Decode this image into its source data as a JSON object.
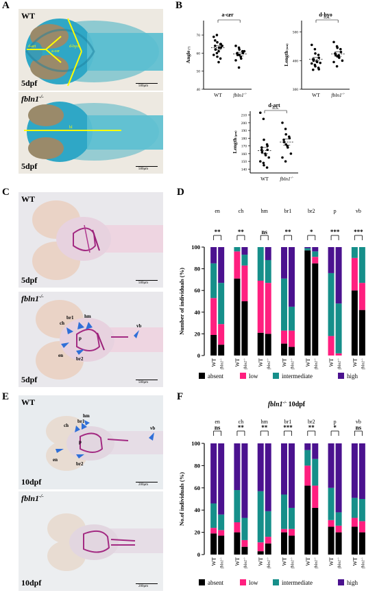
{
  "panel_labels": {
    "a": "A",
    "b": "B",
    "c": "C",
    "d": "D",
    "e": "E",
    "f": "F"
  },
  "panel_a": {
    "top": {
      "genotype": "WT",
      "stage": "5dpf",
      "scale": "500μm",
      "labels": {
        "d_art": "d-art",
        "a_cer": "a-cer",
        "d_hyo": "d-hyo"
      }
    },
    "bottom": {
      "genotype": "fbln1",
      "sup": "-/-",
      "stage": "5dpf",
      "scale": "500μm",
      "labels": {
        "bl": "bl"
      }
    }
  },
  "panel_b": {
    "charts": [
      {
        "title": "a-cer",
        "ylabel": "Angle",
        "yunit": "(°)",
        "yticks": [
          "40",
          "50",
          "60",
          "70"
        ],
        "ylim": [
          40,
          78
        ],
        "xlabels": [
          "WT",
          "fbln1"
        ],
        "xsup": "-/-",
        "sig": "*",
        "groups": [
          {
            "values": [
              69,
              70,
              66,
              65,
              63,
              64,
              62,
              61,
              63,
              64,
              59,
              60,
              58,
              57,
              65,
              67,
              62,
              55
            ],
            "mean": 63,
            "sem": 1.0
          },
          {
            "values": [
              64,
              63,
              62,
              61,
              60,
              60,
              59,
              58,
              57,
              61,
              56,
              52,
              59
            ],
            "mean": 59.5,
            "sem": 1.0
          }
        ]
      },
      {
        "title": "d-hyo",
        "ylabel": "Length",
        "yunit": "(um)",
        "yticks": [
          "300",
          "400",
          "500"
        ],
        "ylim": [
          300,
          540
        ],
        "xlabels": [
          "WT",
          "fbln1"
        ],
        "xsup": "-/-",
        "sig": "n.s.",
        "groups": [
          {
            "values": [
              455,
              440,
              425,
              420,
              410,
              405,
              400,
              398,
              395,
              392,
              390,
              385,
              380,
              375,
              370,
              368,
              405
            ],
            "mean": 405,
            "sem": 6
          },
          {
            "values": [
              465,
              450,
              445,
              440,
              430,
              425,
              420,
              418,
              410,
              400,
              395,
              380,
              415
            ],
            "mean": 423,
            "sem": 8
          }
        ]
      },
      {
        "title": "d-art",
        "ylabel": "Length",
        "yunit": "(μm)",
        "yticks": [
          "140",
          "150",
          "160",
          "170",
          "180",
          "190",
          "200",
          "210"
        ],
        "ylim": [
          135,
          215
        ],
        "xlabels": [
          "WT",
          "fbln1"
        ],
        "xsup": "-/-",
        "sig": "n.s.",
        "groups": [
          {
            "values": [
              213,
              205,
              178,
              172,
              170,
              165,
              162,
              160,
              158,
              155,
              150,
              148,
              145,
              142,
              165,
              168
            ],
            "mean": 164,
            "sem": 4
          },
          {
            "values": [
              200,
              192,
              185,
              182,
              180,
              178,
              175,
              170,
              168,
              160,
              155,
              150,
              172
            ],
            "mean": 175,
            "sem": 4
          }
        ]
      }
    ]
  },
  "panel_c": {
    "top": {
      "genotype": "WT",
      "stage": "5dpf",
      "scale": "500μm"
    },
    "bottom": {
      "genotype": "fbln1",
      "sup": "-/-",
      "stage": "5dpf",
      "scale": "500μm",
      "labels": {
        "ch": "ch",
        "br1": "br1",
        "hm": "hm",
        "p": "p",
        "en": "en",
        "br2": "br2",
        "vb": "vb"
      }
    }
  },
  "panel_e": {
    "top": {
      "genotype": "WT",
      "stage": "10dpf",
      "scale": "200μm",
      "labels": {
        "hm": "hm",
        "br1": "br1",
        "ch": "ch",
        "p": "p",
        "en": "en",
        "br2": "br2",
        "vb": "vb"
      }
    },
    "bottom": {
      "genotype": "fbln1",
      "sup": "-/-",
      "stage": "10dpf",
      "scale": "200μm"
    }
  },
  "legend": {
    "absent": "absent",
    "low": "low",
    "intermediate": "intermediate",
    "high": "high"
  },
  "colors": {
    "absent": "#000000",
    "low": "#ff1f7f",
    "intermediate": "#168f8a",
    "high": "#4b128f",
    "arrow": "#2f6fd8",
    "anno": "#ffff00"
  },
  "chart_data": [
    {
      "type": "bar",
      "title": "",
      "ylabel": "Number of individuals (%)",
      "yticks": [
        "0",
        "20",
        "40",
        "60",
        "80",
        "100"
      ],
      "ylim": [
        0,
        100
      ],
      "categories": [
        "en",
        "ch",
        "hm",
        "br1",
        "br2",
        "p",
        "vb"
      ],
      "bar_labels": [
        "WT",
        "fbln1-/-"
      ],
      "significance": [
        "**",
        "**",
        "ns",
        "**",
        "*",
        "***",
        "***"
      ],
      "series_order": [
        "absent",
        "low",
        "intermediate",
        "high"
      ],
      "bars": {
        "WT": [
          [
            19,
            34,
            32,
            15
          ],
          [
            71,
            25,
            4,
            0
          ],
          [
            21,
            48,
            31,
            0
          ],
          [
            11,
            12,
            48,
            29
          ],
          [
            97,
            0,
            2,
            1
          ],
          [
            0,
            18,
            58,
            24
          ],
          [
            60,
            30,
            10,
            0
          ]
        ],
        "fbln1-/-": [
          [
            10,
            19,
            38,
            33
          ],
          [
            50,
            33,
            10,
            7
          ],
          [
            20,
            47,
            21,
            12
          ],
          [
            8,
            15,
            22,
            55
          ],
          [
            85,
            6,
            5,
            4
          ],
          [
            0,
            2,
            46,
            52
          ],
          [
            42,
            25,
            33,
            0
          ]
        ]
      },
      "legend": [
        "absent",
        "low",
        "intermediate",
        "high"
      ]
    },
    {
      "type": "bar",
      "title": "fbln1-/- 10dpf",
      "title_main": "fbln1",
      "title_sup": "-/-",
      "title_tail": " 10dpf",
      "ylabel": "No.of individuals (%)",
      "yticks": [
        "0",
        "20",
        "40",
        "60",
        "80",
        "100"
      ],
      "ylim": [
        0,
        100
      ],
      "categories": [
        "en",
        "ch",
        "hm",
        "br1",
        "br2",
        "p",
        "vb"
      ],
      "bar_labels": [
        "WT",
        "fbln1-/-"
      ],
      "significance": [
        "ns",
        "**",
        "**",
        "***",
        "**",
        "*",
        "ns"
      ],
      "series_order": [
        "absent",
        "low",
        "intermediate",
        "high"
      ],
      "bars": {
        "WT": [
          [
            19,
            5,
            22,
            54
          ],
          [
            20,
            9,
            29,
            42
          ],
          [
            3,
            8,
            46,
            43
          ],
          [
            20,
            3,
            31,
            46
          ],
          [
            62,
            18,
            14,
            6
          ],
          [
            25,
            6,
            29,
            40
          ],
          [
            25,
            8,
            18,
            49
          ]
        ],
        "fbln1-/-": [
          [
            17,
            5,
            14,
            64
          ],
          [
            7,
            6,
            20,
            67
          ],
          [
            10,
            6,
            23,
            61
          ],
          [
            17,
            6,
            19,
            58
          ],
          [
            42,
            20,
            24,
            14
          ],
          [
            20,
            6,
            12,
            62
          ],
          [
            20,
            10,
            20,
            50
          ]
        ]
      },
      "legend": [
        "absent",
        "low",
        "intermediate",
        "high"
      ]
    }
  ]
}
